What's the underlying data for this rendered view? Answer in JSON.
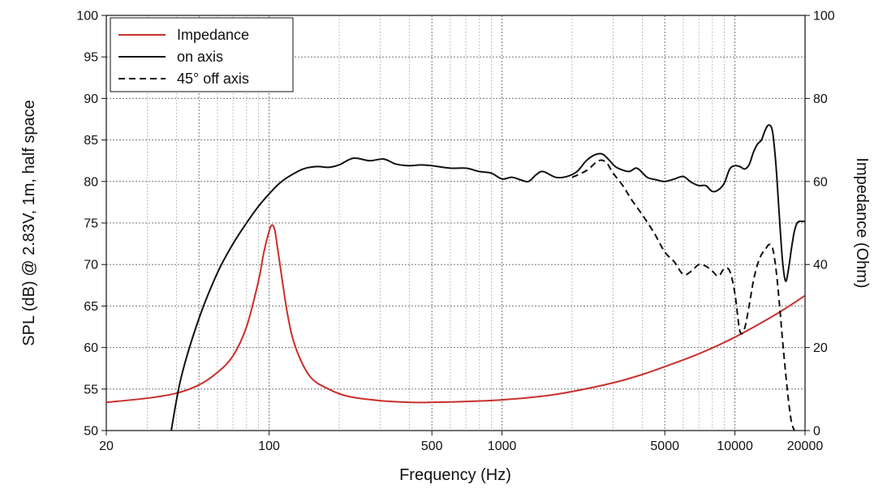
{
  "chart_data": {
    "type": "line",
    "title": "",
    "xlabel": "Frequency (Hz)",
    "ylabel": "SPL (dB) @ 2.83V, 1m, half space",
    "y2label": "Impedance (Ohm)",
    "x_scale": "log",
    "xlim": [
      20,
      20000
    ],
    "ylim": [
      50,
      100
    ],
    "y2lim": [
      0,
      100
    ],
    "x_tick_labels": [
      "20",
      "100",
      "500",
      "1000",
      "5000",
      "10000",
      "20000"
    ],
    "y_tick_labels": [
      "50",
      "55",
      "60",
      "65",
      "70",
      "75",
      "80",
      "85",
      "90",
      "95",
      "100"
    ],
    "y2_tick_labels": [
      "0",
      "20",
      "40",
      "60",
      "80",
      "100"
    ],
    "grid": true,
    "legend_position": "top-left",
    "series": [
      {
        "name": "Impedance",
        "axis": "right",
        "color": "#c9302c",
        "dash": "solid",
        "x": [
          20,
          30,
          40,
          50,
          60,
          70,
          80,
          90,
          95,
          100,
          103,
          106,
          110,
          120,
          130,
          150,
          180,
          220,
          300,
          400,
          500,
          700,
          1000,
          1500,
          2000,
          3000,
          4000,
          5000,
          7000,
          10000,
          15000,
          20000
        ],
        "y": [
          6.8,
          7.8,
          9,
          11,
          14,
          18,
          25,
          36,
          43,
          48,
          49.5,
          48,
          42,
          28,
          20,
          13,
          10,
          8.2,
          7.2,
          6.8,
          6.8,
          7,
          7.4,
          8.3,
          9.4,
          11.5,
          13.5,
          15.4,
          18.5,
          22.5,
          28,
          32.5
        ]
      },
      {
        "name": "on axis",
        "axis": "left",
        "color": "#111111",
        "dash": "solid",
        "x": [
          38,
          42,
          50,
          60,
          70,
          80,
          90,
          100,
          110,
          120,
          140,
          160,
          180,
          200,
          230,
          270,
          310,
          350,
          400,
          450,
          500,
          600,
          700,
          800,
          900,
          1000,
          1100,
          1200,
          1300,
          1400,
          1500,
          1700,
          1900,
          2100,
          2300,
          2500,
          2700,
          2900,
          3100,
          3500,
          3800,
          4200,
          4600,
          5000,
          5500,
          6000,
          6500,
          7000,
          7500,
          8000,
          8500,
          9000,
          9500,
          10000,
          10500,
          11000,
          11500,
          12000,
          12500,
          13000,
          13500,
          14000,
          14500,
          15000,
          15500,
          16000,
          16500,
          17000,
          17500,
          18000,
          18500,
          19000,
          19500,
          20000
        ],
        "y": [
          50,
          56.5,
          63.5,
          69,
          72.5,
          75,
          77,
          78.5,
          79.7,
          80.5,
          81.5,
          81.8,
          81.7,
          82,
          82.8,
          82.5,
          82.7,
          82.1,
          81.9,
          82,
          81.9,
          81.6,
          81.6,
          81.2,
          81,
          80.3,
          80.5,
          80.2,
          80,
          80.8,
          81.2,
          80.5,
          80.6,
          81.2,
          82.5,
          83.2,
          83.3,
          82.5,
          81.7,
          81.2,
          81.6,
          80.5,
          80.2,
          80,
          80.3,
          80.6,
          79.9,
          79.5,
          79.5,
          78.8,
          79,
          79.8,
          81.5,
          81.9,
          81.8,
          81.5,
          82,
          83.5,
          84.5,
          85,
          86.2,
          86.8,
          86,
          82,
          76,
          70.5,
          68,
          69.5,
          72,
          74,
          75,
          75.2,
          75.2,
          75.2
        ]
      },
      {
        "name": "45° off axis",
        "axis": "left",
        "color": "#111111",
        "dash": "dashed",
        "x": [
          2000,
          2300,
          2600,
          2800,
          3000,
          3300,
          3600,
          4000,
          4500,
          5000,
          5500,
          6000,
          6500,
          7000,
          7500,
          8000,
          8500,
          9000,
          9500,
          10000,
          10500,
          11000,
          11500,
          12000,
          12500,
          13000,
          13500,
          14000,
          14500,
          15000,
          15500,
          16000,
          16500,
          17000,
          17500,
          18000
        ],
        "y": [
          80.5,
          81.3,
          82.5,
          82.3,
          81,
          79.5,
          77.8,
          76,
          73.8,
          71.5,
          70.3,
          68.8,
          69.2,
          70,
          69.8,
          69.2,
          68.6,
          69.5,
          69.2,
          66.5,
          62,
          62.3,
          65,
          68,
          70,
          71.2,
          71.8,
          72.4,
          72,
          69.5,
          65.5,
          61,
          57,
          53.5,
          51,
          50
        ]
      }
    ]
  }
}
